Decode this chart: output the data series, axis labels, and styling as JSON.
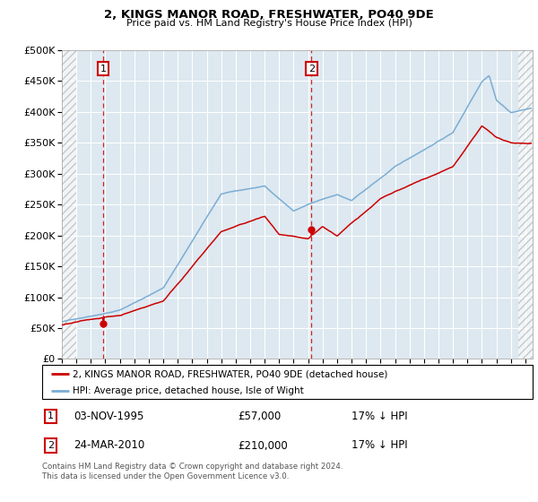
{
  "title": "2, KINGS MANOR ROAD, FRESHWATER, PO40 9DE",
  "subtitle": "Price paid vs. HM Land Registry's House Price Index (HPI)",
  "ylabel_ticks": [
    "£0",
    "£50K",
    "£100K",
    "£150K",
    "£200K",
    "£250K",
    "£300K",
    "£350K",
    "£400K",
    "£450K",
    "£500K"
  ],
  "ytick_values": [
    0,
    50000,
    100000,
    150000,
    200000,
    250000,
    300000,
    350000,
    400000,
    450000,
    500000
  ],
  "ylim": [
    0,
    500000
  ],
  "xlim_start": 1993.0,
  "xlim_end": 2025.5,
  "sale1_date": 1995.84,
  "sale1_price": 57000,
  "sale2_date": 2010.23,
  "sale2_price": 210000,
  "red_line_color": "#cc0000",
  "blue_line_color": "#7aadd4",
  "bg_color": "#dde8f0",
  "grid_color": "#ffffff",
  "legend_line1": "2, KINGS MANOR ROAD, FRESHWATER, PO40 9DE (detached house)",
  "legend_line2": "HPI: Average price, detached house, Isle of Wight",
  "table_row1": [
    "1",
    "03-NOV-1995",
    "£57,000",
    "17% ↓ HPI"
  ],
  "table_row2": [
    "2",
    "24-MAR-2010",
    "£210,000",
    "17% ↓ HPI"
  ],
  "footnote": "Contains HM Land Registry data © Crown copyright and database right 2024.\nThis data is licensed under the Open Government Licence v3.0."
}
